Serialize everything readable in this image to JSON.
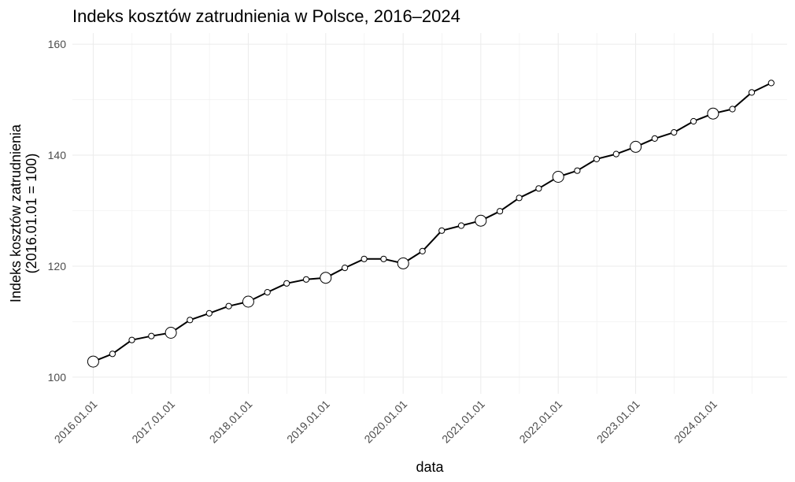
{
  "chart_data": {
    "type": "line",
    "title": "Indeks kosztów zatrudnienia w Polsce, 2016–2024",
    "xlabel": "data",
    "ylabel": [
      "Indeks kosztów zatrudnienia",
      "(2016.01.01 = 100)"
    ],
    "x_ticks": [
      "2016.01.01",
      "2017.01.01",
      "2018.01.01",
      "2019.01.01",
      "2020.01.01",
      "2021.01.01",
      "2022.01.01",
      "2023.01.01",
      "2024.01.01"
    ],
    "y_ticks": [
      100,
      120,
      140,
      160
    ],
    "ylim": [
      97,
      162
    ],
    "grid": true,
    "x": [
      "2016-01-01",
      "2016-04-01",
      "2016-07-01",
      "2016-10-01",
      "2017-01-01",
      "2017-04-01",
      "2017-07-01",
      "2017-10-01",
      "2018-01-01",
      "2018-04-01",
      "2018-07-01",
      "2018-10-01",
      "2019-01-01",
      "2019-04-01",
      "2019-07-01",
      "2019-10-01",
      "2020-01-01",
      "2020-04-01",
      "2020-07-01",
      "2020-10-01",
      "2021-01-01",
      "2021-04-01",
      "2021-07-01",
      "2021-10-01",
      "2022-01-01",
      "2022-04-01",
      "2022-07-01",
      "2022-10-01",
      "2023-01-01",
      "2023-04-01",
      "2023-07-01",
      "2023-10-01",
      "2024-01-01",
      "2024-04-01",
      "2024-07-01",
      "2024-10-01"
    ],
    "values": [
      102.8,
      104.2,
      106.7,
      107.4,
      108.0,
      110.3,
      111.5,
      112.8,
      113.6,
      115.3,
      116.9,
      117.6,
      117.9,
      119.7,
      121.3,
      121.3,
      120.5,
      122.7,
      126.4,
      127.3,
      128.2,
      129.9,
      132.3,
      134.0,
      136.1,
      137.2,
      139.3,
      140.2,
      141.5,
      143.0,
      144.1,
      146.1,
      147.5,
      148.3,
      151.3,
      153.0
    ]
  }
}
